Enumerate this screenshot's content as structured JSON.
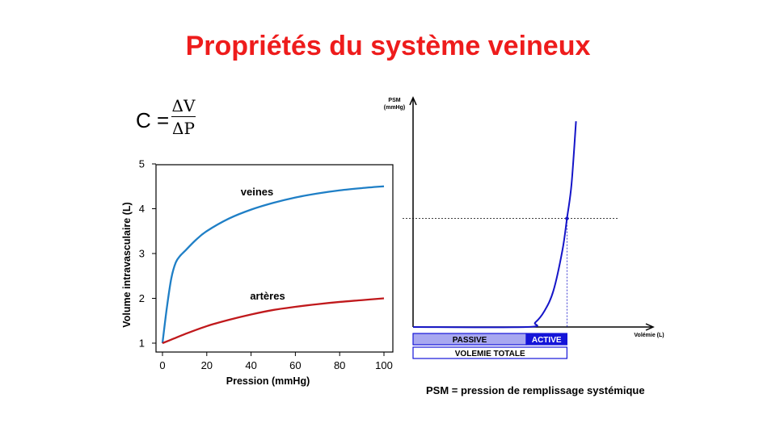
{
  "title": "Propriétés du système veineux",
  "formula": {
    "lhs": "C =",
    "numerator": "ΔV",
    "denominator": "ΔP"
  },
  "footnote": "PSM = pression de remplissage systémique",
  "colors": {
    "title": "#ee1c1c",
    "veines": "#1f7fc6",
    "arteres": "#c0191c",
    "psm_curve": "#1515c8",
    "passive": "#a8a8f0",
    "active": "#1515d8"
  },
  "chart_data": [
    {
      "type": "line",
      "title": "",
      "xlabel": "Pression (mmHg)",
      "ylabel": "Volume intravasculaire (L)",
      "xlim": [
        0,
        100
      ],
      "ylim": [
        1,
        5
      ],
      "xticks": [
        0,
        20,
        40,
        60,
        80,
        100
      ],
      "yticks": [
        1,
        2,
        3,
        4,
        5
      ],
      "series": [
        {
          "name": "veines",
          "x": [
            0,
            2,
            4,
            6,
            8,
            10,
            15,
            20,
            30,
            40,
            50,
            60,
            70,
            80,
            90,
            100
          ],
          "y": [
            1.0,
            1.8,
            2.45,
            2.8,
            2.95,
            3.05,
            3.3,
            3.5,
            3.78,
            3.98,
            4.13,
            4.25,
            4.34,
            4.41,
            4.46,
            4.5
          ]
        },
        {
          "name": "artères",
          "x": [
            0,
            5,
            10,
            20,
            30,
            40,
            50,
            60,
            70,
            80,
            90,
            100
          ],
          "y": [
            1.0,
            1.1,
            1.2,
            1.38,
            1.52,
            1.64,
            1.74,
            1.81,
            1.87,
            1.92,
            1.96,
            2.0
          ]
        }
      ]
    },
    {
      "type": "line",
      "title": "",
      "xlabel": "Volémie (L)",
      "ylabel": "PSM (mmHg)",
      "xlim": [
        0,
        1
      ],
      "ylim": [
        0,
        1
      ],
      "series": [
        {
          "name": "",
          "x": [
            0,
            0.5,
            0.54,
            0.58,
            0.62,
            0.66,
            0.68,
            0.7,
            0.72
          ],
          "y": [
            0,
            0,
            0.02,
            0.07,
            0.16,
            0.34,
            0.48,
            0.63,
            0.91
          ]
        }
      ],
      "reference": {
        "x": 0.68,
        "y": 0.48
      },
      "bars": {
        "passive": {
          "label": "PASSIVE",
          "to": 0.5
        },
        "active": {
          "label": "ACTIVE",
          "to": 0.68
        },
        "total": {
          "label": "VOLEMIE TOTALE",
          "to": 0.68
        }
      }
    }
  ]
}
